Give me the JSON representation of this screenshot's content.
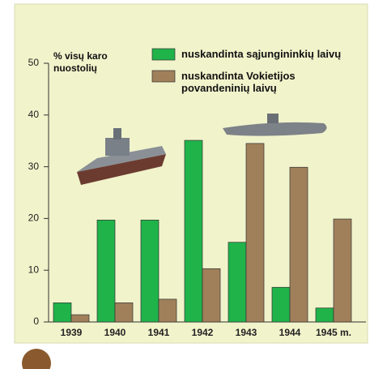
{
  "chart_data": {
    "type": "bar",
    "ylabel": "% visų karo nuostolių",
    "categories": [
      "1939",
      "1940",
      "1941",
      "1942",
      "1943",
      "1944",
      "1945 m."
    ],
    "series": [
      {
        "name": "nuskandinta sąjungininkių laivų",
        "color": "#1fb34a",
        "values": [
          3.7,
          19.7,
          19.7,
          35.1,
          15.4,
          6.7,
          2.7
        ]
      },
      {
        "name": "nuskandinta Vokietijos povandeninių laivų",
        "color": "#a0805a",
        "values": [
          1.4,
          3.7,
          4.4,
          10.3,
          34.5,
          29.9,
          19.9
        ]
      }
    ],
    "ylim": [
      0,
      50
    ],
    "yticks": [
      0,
      10,
      20,
      30,
      40,
      50
    ]
  }
}
